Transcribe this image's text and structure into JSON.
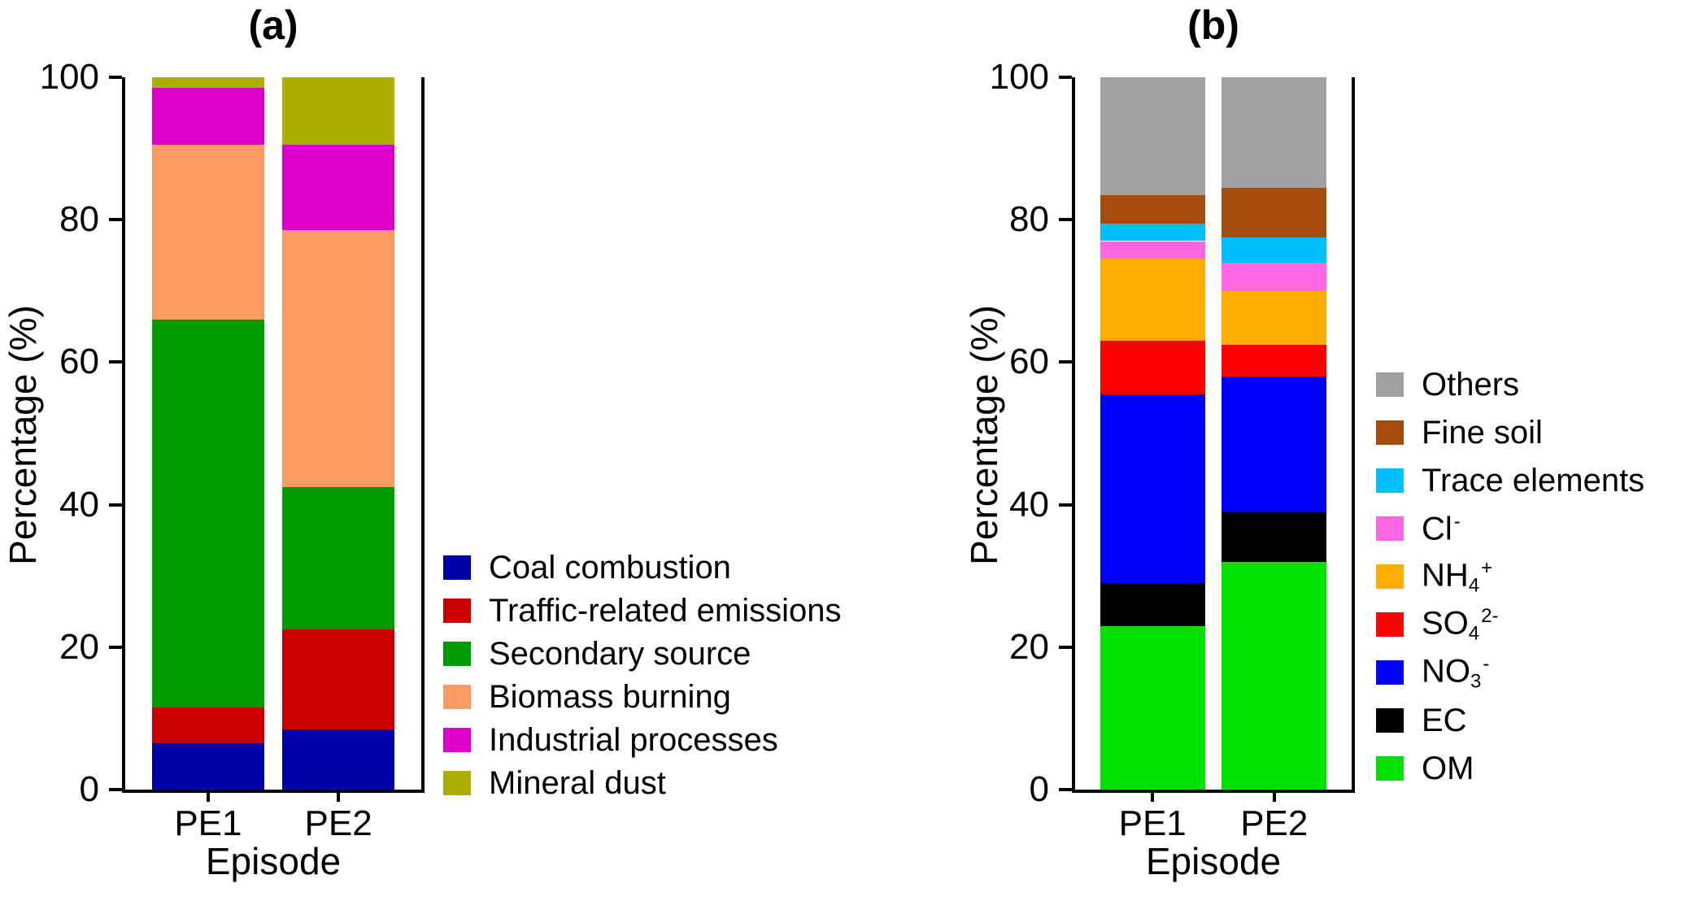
{
  "colors": {
    "background": "#ffffff",
    "axis": "#000000",
    "text": "#000000"
  },
  "chart_data": [
    {
      "type": "bar",
      "stacked": true,
      "panel": "a",
      "title": "(a)",
      "xlabel": "Episode",
      "ylabel": "Percentage (%)",
      "ylim": [
        0,
        100
      ],
      "yticks": [
        0,
        20,
        40,
        60,
        80,
        100
      ],
      "categories": [
        "PE1",
        "PE2"
      ],
      "legend_position": "right",
      "legend_order": "same-as-stack",
      "series": [
        {
          "name": "Coal combustion",
          "color": "#0000A8",
          "values": [
            6.5,
            8.5
          ]
        },
        {
          "name": "Traffic-related emissions",
          "color": "#CC0000",
          "values": [
            5.0,
            14.0
          ]
        },
        {
          "name": "Secondary source",
          "color": "#009B00",
          "values": [
            54.5,
            20.0
          ]
        },
        {
          "name": "Biomass burning",
          "color": "#FB9A62",
          "values": [
            24.5,
            36.0
          ]
        },
        {
          "name": "Industrial processes",
          "color": "#DC00C8",
          "values": [
            8.0,
            12.0
          ]
        },
        {
          "name": "Mineral dust",
          "color": "#AEAE00",
          "values": [
            1.5,
            9.5
          ]
        }
      ]
    },
    {
      "type": "bar",
      "stacked": true,
      "panel": "b",
      "title": "(b)",
      "xlabel": "Episode",
      "ylabel": "Percentage (%)",
      "ylim": [
        0,
        100
      ],
      "yticks": [
        0,
        20,
        40,
        60,
        80,
        100
      ],
      "categories": [
        "PE1",
        "PE2"
      ],
      "legend_position": "right",
      "legend_order": "reverse-of-stack",
      "series": [
        {
          "name": "OM",
          "color": "#00E100",
          "values": [
            23.0,
            32.0
          ],
          "label": [
            {
              "t": "OM"
            }
          ]
        },
        {
          "name": "EC",
          "color": "#000000",
          "values": [
            6.0,
            7.0
          ],
          "label": [
            {
              "t": "EC"
            }
          ]
        },
        {
          "name": "NO3-",
          "color": "#0000FF",
          "values": [
            26.5,
            19.0
          ],
          "label": [
            {
              "t": "NO"
            },
            {
              "sub": "3"
            },
            {
              "sup": "-"
            }
          ]
        },
        {
          "name": "SO42-",
          "color": "#FF0000",
          "values": [
            7.5,
            4.5
          ],
          "label": [
            {
              "t": "SO"
            },
            {
              "sub": "4"
            },
            {
              "sup": "2-"
            }
          ]
        },
        {
          "name": "NH4+",
          "color": "#FFAE00",
          "values": [
            11.5,
            7.5
          ],
          "label": [
            {
              "t": "NH"
            },
            {
              "sub": "4"
            },
            {
              "sup": "+"
            }
          ]
        },
        {
          "name": "Cl-",
          "color": "#FF66E6",
          "values": [
            2.5,
            4.0
          ],
          "label": [
            {
              "t": "Cl"
            },
            {
              "sup": "-"
            }
          ]
        },
        {
          "name": "Trace elements",
          "color": "#00BFFF",
          "values": [
            2.5,
            3.5
          ],
          "label": [
            {
              "t": "Trace elements"
            }
          ]
        },
        {
          "name": "Fine soil",
          "color": "#A64B0A",
          "values": [
            4.0,
            7.0
          ],
          "label": [
            {
              "t": "Fine soil"
            }
          ]
        },
        {
          "name": "Others",
          "color": "#A0A0A0",
          "values": [
            16.5,
            15.5
          ],
          "label": [
            {
              "t": "Others"
            }
          ]
        }
      ]
    }
  ]
}
